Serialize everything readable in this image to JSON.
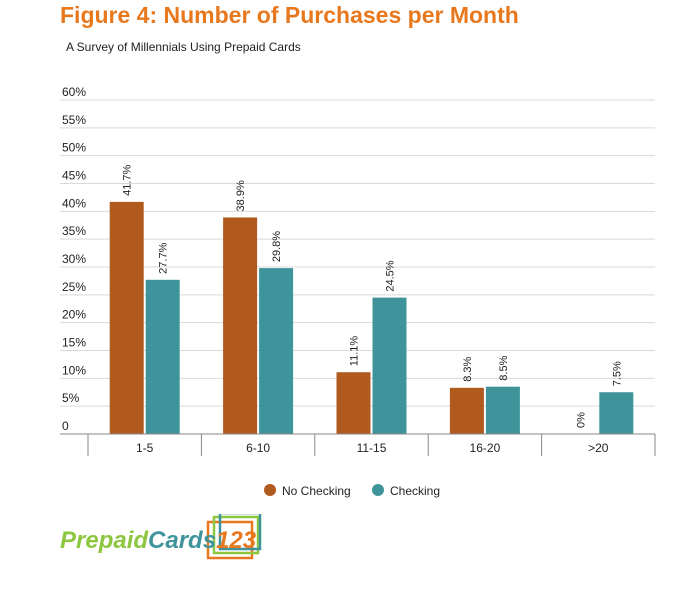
{
  "title": "Figure 4: Number of Purchases per Month",
  "subtitle": "A Survey of Millennials Using Prepaid Cards",
  "colors": {
    "title": "#E8781E",
    "no_checking": "#B05A1E",
    "checking": "#3E949A",
    "grid": "#d9d9d9"
  },
  "logo": {
    "text": "PrepaidCards123",
    "part1": "Prepaid",
    "part2": "Cards",
    "part3": "123"
  },
  "chart_data": {
    "type": "bar",
    "title": "Figure 4: Number of Purchases per Month",
    "subtitle": "A Survey of Millennials Using Prepaid Cards",
    "categories": [
      "1-5",
      "6-10",
      "11-15",
      "16-20",
      ">20"
    ],
    "series": [
      {
        "name": "No Checking",
        "color": "#B05A1E",
        "values": [
          41.7,
          38.9,
          11.1,
          8.3,
          0
        ],
        "labels": [
          "41.7%",
          "38.9%",
          "11.1%",
          "8.3%",
          "0%"
        ]
      },
      {
        "name": "Checking",
        "color": "#3E949A",
        "values": [
          27.7,
          29.8,
          24.5,
          8.5,
          7.5
        ],
        "labels": [
          "27.7%",
          "29.8%",
          "24.5%",
          "8.5%",
          "7.5%"
        ]
      }
    ],
    "y_ticks": [
      "0",
      "5%",
      "10%",
      "15%",
      "20%",
      "25%",
      "30%",
      "35%",
      "40%",
      "45%",
      "50%",
      "55%",
      "60%"
    ],
    "ylim": [
      0,
      60
    ],
    "grid": true,
    "legend_position": "bottom-center"
  }
}
